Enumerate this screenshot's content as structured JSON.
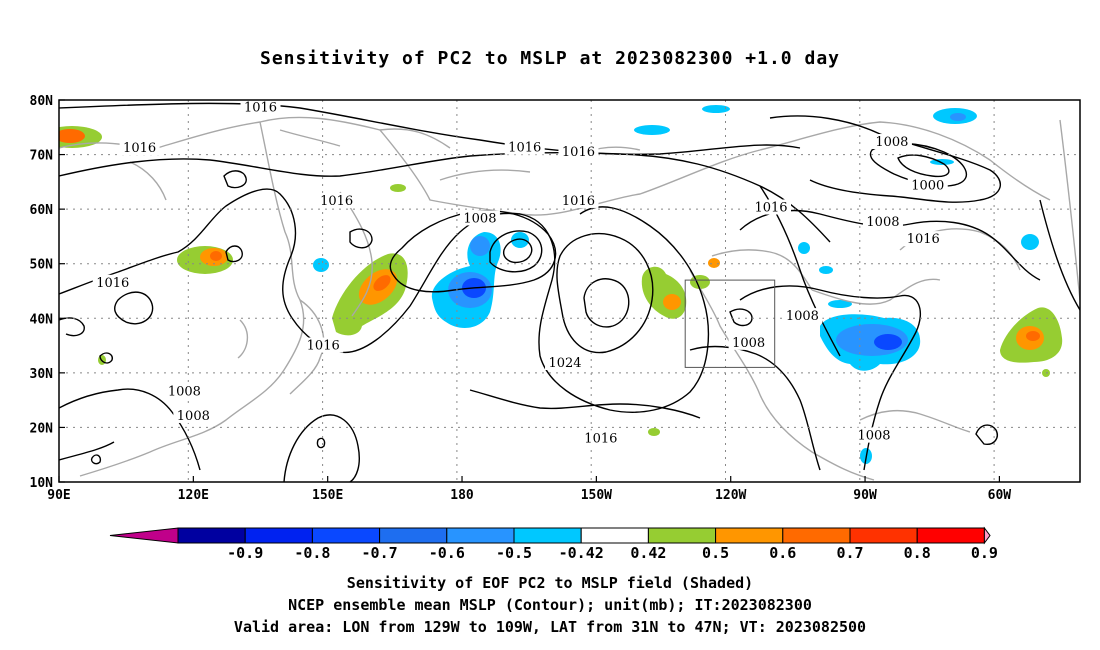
{
  "title": "Sensitivity of PC2 to MSLP at 2023082300 +1.0 day",
  "lat_labels": [
    "80N",
    "70N",
    "60N",
    "50N",
    "40N",
    "30N",
    "20N",
    "10N"
  ],
  "lon_labels": [
    "90E",
    "120E",
    "150E",
    "180",
    "150W",
    "120W",
    "90W",
    "60W"
  ],
  "contour_labels": [
    {
      "text": "1016",
      "lon": 135,
      "lat": 78.6
    },
    {
      "text": "1016",
      "lon": 108,
      "lat": 71.2
    },
    {
      "text": "1016",
      "lon": 194,
      "lat": 71.3
    },
    {
      "text": "1016",
      "lon": 206,
      "lat": 70.5
    },
    {
      "text": "1016",
      "lon": 152,
      "lat": 61.5
    },
    {
      "text": "1016",
      "lon": 206,
      "lat": 61.5
    },
    {
      "text": "1016",
      "lon": 249,
      "lat": 60.3
    },
    {
      "text": "1016",
      "lon": 102,
      "lat": 46.5
    },
    {
      "text": "1016",
      "lon": 149,
      "lat": 35.0
    },
    {
      "text": "1016",
      "lon": 283,
      "lat": 54.5
    },
    {
      "text": "1016",
      "lon": 211,
      "lat": 18.0
    },
    {
      "text": "1008",
      "lon": 184,
      "lat": 58.3
    },
    {
      "text": "1008",
      "lon": 276,
      "lat": 72.3
    },
    {
      "text": "1008",
      "lon": 274,
      "lat": 57.6
    },
    {
      "text": "1008",
      "lon": 256,
      "lat": 40.4
    },
    {
      "text": "1008",
      "lon": 244,
      "lat": 35.5
    },
    {
      "text": "1008",
      "lon": 118,
      "lat": 26.6
    },
    {
      "text": "1008",
      "lon": 120,
      "lat": 22.1
    },
    {
      "text": "1008",
      "lon": 272,
      "lat": 18.5
    },
    {
      "text": "1000",
      "lon": 284,
      "lat": 64.3
    },
    {
      "text": "1024",
      "lon": 203,
      "lat": 31.8
    }
  ],
  "colorbar": {
    "labels": [
      "-0.9",
      "-0.8",
      "-0.7",
      "-0.6",
      "-0.5",
      "-0.42",
      "0.42",
      "0.5",
      "0.6",
      "0.7",
      "0.8",
      "0.9"
    ],
    "colors": [
      "#0000a0",
      "#0022f0",
      "#0a48ff",
      "#1e6ef0",
      "#2894ff",
      "#00c8ff",
      "#ffffff",
      "#96cd32",
      "#ff9600",
      "#ff6a00",
      "#ff3200",
      "#ff0000"
    ],
    "low_end": "#c0008a",
    "high_end": "#ff9cc8"
  },
  "captions": [
    "Sensitivity of EOF PC2 to MSLP field (Shaded)",
    "NCEP ensemble mean MSLP (Contour); unit(mb); IT:2023082300",
    "Valid area: LON from 129W to 109W, LAT from 31N to 47N; VT: 2023082500"
  ]
}
